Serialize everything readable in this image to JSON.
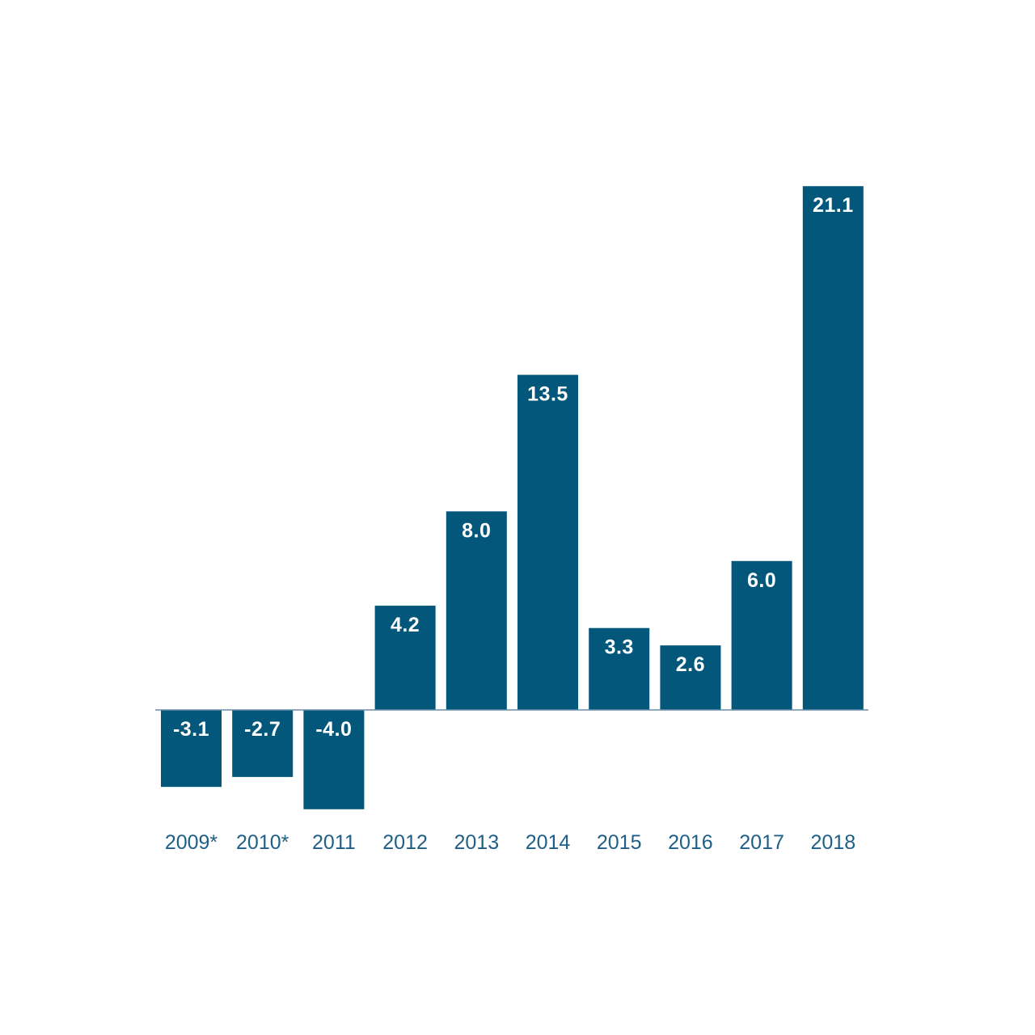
{
  "chart_data": {
    "type": "bar",
    "categories": [
      "2009*",
      "2010*",
      "2011",
      "2012",
      "2013",
      "2014",
      "2015",
      "2016",
      "2017",
      "2018"
    ],
    "values": [
      -3.1,
      -2.7,
      -4.0,
      4.2,
      8.0,
      13.5,
      3.3,
      2.6,
      6.0,
      21.1
    ],
    "value_labels": [
      "-3.1",
      "-2.7",
      "-4.0",
      "4.2",
      "8.0",
      "13.5",
      "3.3",
      "2.6",
      "6.0",
      "21.1"
    ],
    "title": "",
    "xlabel": "",
    "ylabel": "",
    "ylim": [
      -4.0,
      21.1
    ],
    "grid": false,
    "legend": "none",
    "colors": {
      "bar": "#02577a",
      "axis": "#6a8ea8",
      "tick_text": "#1f5f86",
      "label_text": "#ffffff"
    }
  }
}
